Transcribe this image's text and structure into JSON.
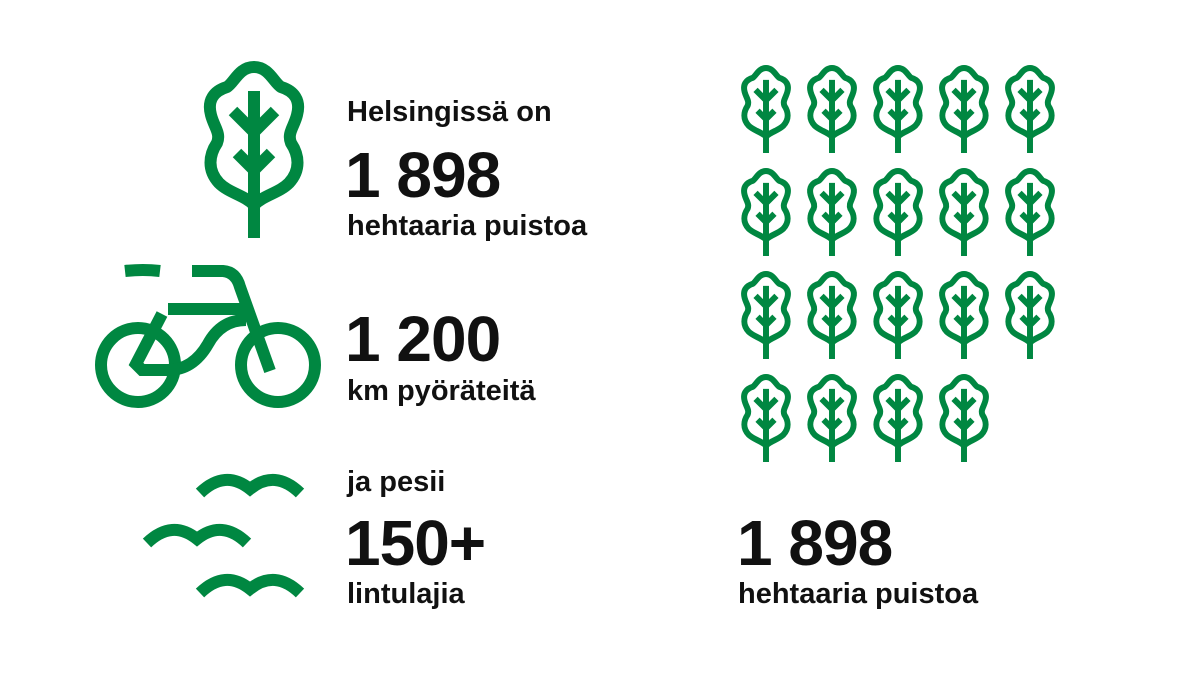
{
  "colors": {
    "accent": "#008741",
    "text": "#111111"
  },
  "parks": {
    "intro": "Helsingissä on",
    "value": "1 898",
    "unit": "hehtaaria puistoa",
    "icon": "leaf-icon"
  },
  "bikes": {
    "value": "1 200",
    "unit": "km pyöräteitä",
    "icon": "bicycle-icon"
  },
  "birds": {
    "intro": "ja pesii",
    "value": "150+",
    "unit": "lintulajia",
    "icon": "birds-icon"
  },
  "leaf_grid": {
    "count": 19,
    "icon": "leaf-icon",
    "value": "1 898",
    "unit": "hehtaaria puistoa"
  }
}
